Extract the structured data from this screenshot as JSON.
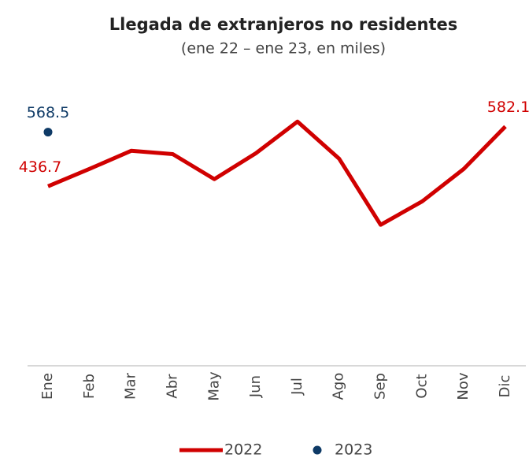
{
  "chart_data": {
    "type": "line",
    "title": "Llegada de extranjeros no residentes",
    "subtitle": "(ene 22 – ene 23, en miles)",
    "categories": [
      "Ene",
      "Feb",
      "Mar",
      "Abr",
      "May",
      "Jun",
      "Jul",
      "Ago",
      "Sep",
      "Oct",
      "Nov",
      "Dic"
    ],
    "series": [
      {
        "name": "2022",
        "color": "#d00000",
        "values": [
          436.7,
          479,
          523,
          515,
          454,
          517,
          594,
          504,
          343,
          400,
          479,
          582.1
        ]
      },
      {
        "name": "2023",
        "color": "#0e3a66",
        "values": [
          568.5,
          null,
          null,
          null,
          null,
          null,
          null,
          null,
          null,
          null,
          null,
          null
        ]
      }
    ],
    "ylim": [
      0,
      700
    ]
  }
}
